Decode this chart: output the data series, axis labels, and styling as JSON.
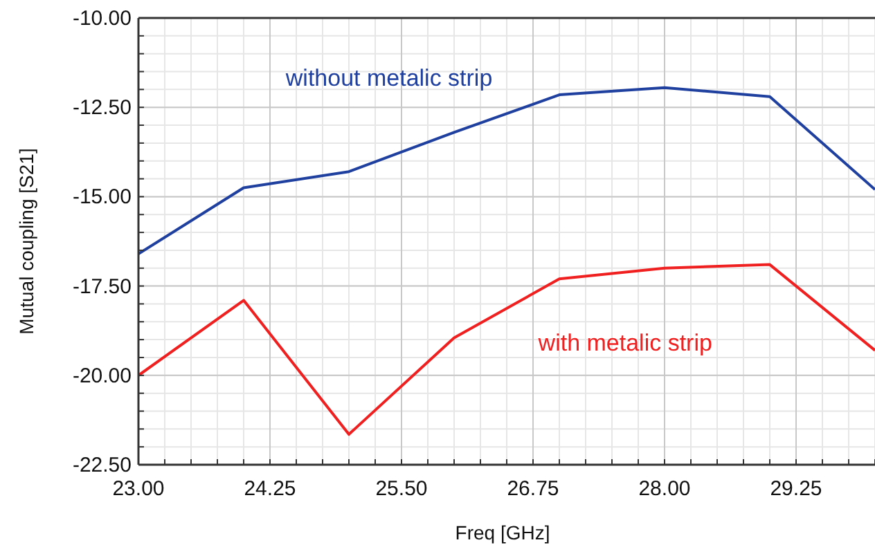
{
  "chart_data": {
    "type": "line",
    "xlabel": "Freq [GHz]",
    "ylabel": "Mutual coupling [S21]",
    "x": [
      23,
      24,
      25,
      26,
      27,
      28,
      29,
      30
    ],
    "xlim": [
      23,
      30
    ],
    "xticks": [
      {
        "value": 23,
        "label": "23.00"
      },
      {
        "value": 24.25,
        "label": "24.25"
      },
      {
        "value": 25.5,
        "label": "25.50"
      },
      {
        "value": 26.75,
        "label": "26.75"
      },
      {
        "value": 28,
        "label": "28.00"
      },
      {
        "value": 29.25,
        "label": "29.25"
      }
    ],
    "ylim": [
      -22.5,
      -10
    ],
    "yticks": [
      {
        "value": -22.5,
        "label": "-22.50"
      },
      {
        "value": -20,
        "label": "-20.00"
      },
      {
        "value": -17.5,
        "label": "-17.50"
      },
      {
        "value": -15,
        "label": "-15.00"
      },
      {
        "value": -12.5,
        "label": "-12.50"
      },
      {
        "value": -10,
        "label": "-10.00"
      }
    ],
    "grid": true,
    "marker": "none",
    "line_style": "solid",
    "series": [
      {
        "name": "without metalic strip",
        "color": "#2040a0",
        "values": [
          -16.6,
          -14.75,
          -14.3,
          -13.2,
          -12.15,
          -11.95,
          -12.2,
          -14.8
        ]
      },
      {
        "name": "with metalic strip",
        "color": "#f02020",
        "values": [
          -20.0,
          -17.9,
          -21.65,
          -18.95,
          -17.3,
          -17.0,
          -16.9,
          -19.3
        ]
      }
    ]
  }
}
